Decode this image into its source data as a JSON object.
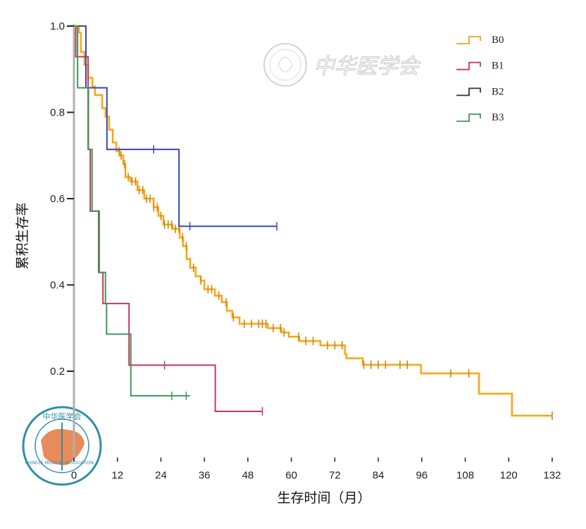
{
  "watermark": {
    "text": "中华医学会",
    "logo_text_cn": "中华医学会",
    "logo_text_en": "CHINESE MEDICAL ASSOCIATION"
  },
  "chart_data": {
    "type": "line",
    "subtype": "kaplan-meier",
    "title": "",
    "xlabel": "生存时间（月）",
    "ylabel": "累积生存率",
    "xlim": [
      0,
      132
    ],
    "ylim": [
      0,
      1.0
    ],
    "xticks": [
      "0",
      "12",
      "24",
      "36",
      "48",
      "60",
      "72",
      "84",
      "96",
      "108",
      "120",
      "132"
    ],
    "yticks": [
      "0.2",
      "0.4",
      "0.6",
      "0.8",
      "1.0"
    ],
    "ytick_values": [
      0.2,
      0.4,
      0.6,
      0.8,
      1.0
    ],
    "grid": false,
    "legend": {
      "placement": "top-right"
    },
    "series": [
      {
        "name": "B0",
        "color": "#f0a020",
        "steps": [
          [
            0,
            1.0
          ],
          [
            1.4,
            0.985
          ],
          [
            1.9,
            0.94
          ],
          [
            2.9,
            0.91
          ],
          [
            3.9,
            0.88
          ],
          [
            5.1,
            0.86
          ],
          [
            5.8,
            0.84
          ],
          [
            7.8,
            0.81
          ],
          [
            8.7,
            0.79
          ],
          [
            9.7,
            0.76
          ],
          [
            10.7,
            0.73
          ],
          [
            11.7,
            0.71
          ],
          [
            12.6,
            0.7
          ],
          [
            13.6,
            0.68
          ],
          [
            14.2,
            0.65
          ],
          [
            15.6,
            0.64
          ],
          [
            17.5,
            0.62
          ],
          [
            19.4,
            0.6
          ],
          [
            22,
            0.58
          ],
          [
            23.3,
            0.56
          ],
          [
            24.7,
            0.54
          ],
          [
            27.2,
            0.53
          ],
          [
            29.2,
            0.51
          ],
          [
            30.1,
            0.49
          ],
          [
            31.1,
            0.46
          ],
          [
            32.1,
            0.44
          ],
          [
            33.6,
            0.42
          ],
          [
            35,
            0.41
          ],
          [
            36,
            0.39
          ],
          [
            38.9,
            0.375
          ],
          [
            40.8,
            0.36
          ],
          [
            42.2,
            0.34
          ],
          [
            43.7,
            0.325
          ],
          [
            45.7,
            0.31
          ],
          [
            53.5,
            0.3
          ],
          [
            57.3,
            0.29
          ],
          [
            59.3,
            0.28
          ],
          [
            62.2,
            0.27
          ],
          [
            68,
            0.26
          ],
          [
            74.8,
            0.24
          ],
          [
            75.2,
            0.23
          ],
          [
            79.7,
            0.215
          ],
          [
            95.8,
            0.195
          ],
          [
            111.8,
            0.148
          ],
          [
            120.9,
            0.097
          ]
        ],
        "end": 132,
        "censored": [
          12.5,
          13,
          14,
          15,
          16,
          17,
          18,
          19,
          20,
          21,
          22,
          23,
          24,
          25,
          26,
          27,
          28,
          29,
          30,
          31,
          33,
          35,
          37,
          38,
          40,
          42,
          44,
          47,
          49,
          51,
          52,
          53,
          55,
          57,
          58,
          62,
          64,
          66,
          70,
          72,
          74,
          80,
          82,
          84,
          86,
          90,
          92,
          104,
          109,
          132
        ]
      },
      {
        "name": "B1",
        "color": "#c8385a",
        "steps": [
          [
            0,
            1.0
          ],
          [
            0.5,
            0.929
          ],
          [
            3.9,
            0.714
          ],
          [
            4.5,
            0.571
          ],
          [
            6.8,
            0.429
          ],
          [
            8,
            0.357
          ],
          [
            15.2,
            0.214
          ],
          [
            39,
            0.107
          ]
        ],
        "end": 52,
        "censored": [
          25,
          52
        ]
      },
      {
        "name": "B2",
        "color": "#3848b8",
        "steps": [
          [
            0,
            1.0
          ],
          [
            3.3,
            0.857
          ],
          [
            9.1,
            0.714
          ],
          [
            29,
            0.536
          ]
        ],
        "end": 56,
        "censored": [
          22,
          32,
          56
        ]
      },
      {
        "name": "B3",
        "color": "#3a9a5a",
        "steps": [
          [
            0,
            1.0
          ],
          [
            1,
            0.857
          ],
          [
            4,
            0.714
          ],
          [
            5,
            0.571
          ],
          [
            7,
            0.429
          ],
          [
            8.7,
            0.357
          ],
          [
            9,
            0.286
          ],
          [
            15.7,
            0.143
          ]
        ],
        "end": 32,
        "censored": [
          27,
          31
        ]
      }
    ]
  }
}
